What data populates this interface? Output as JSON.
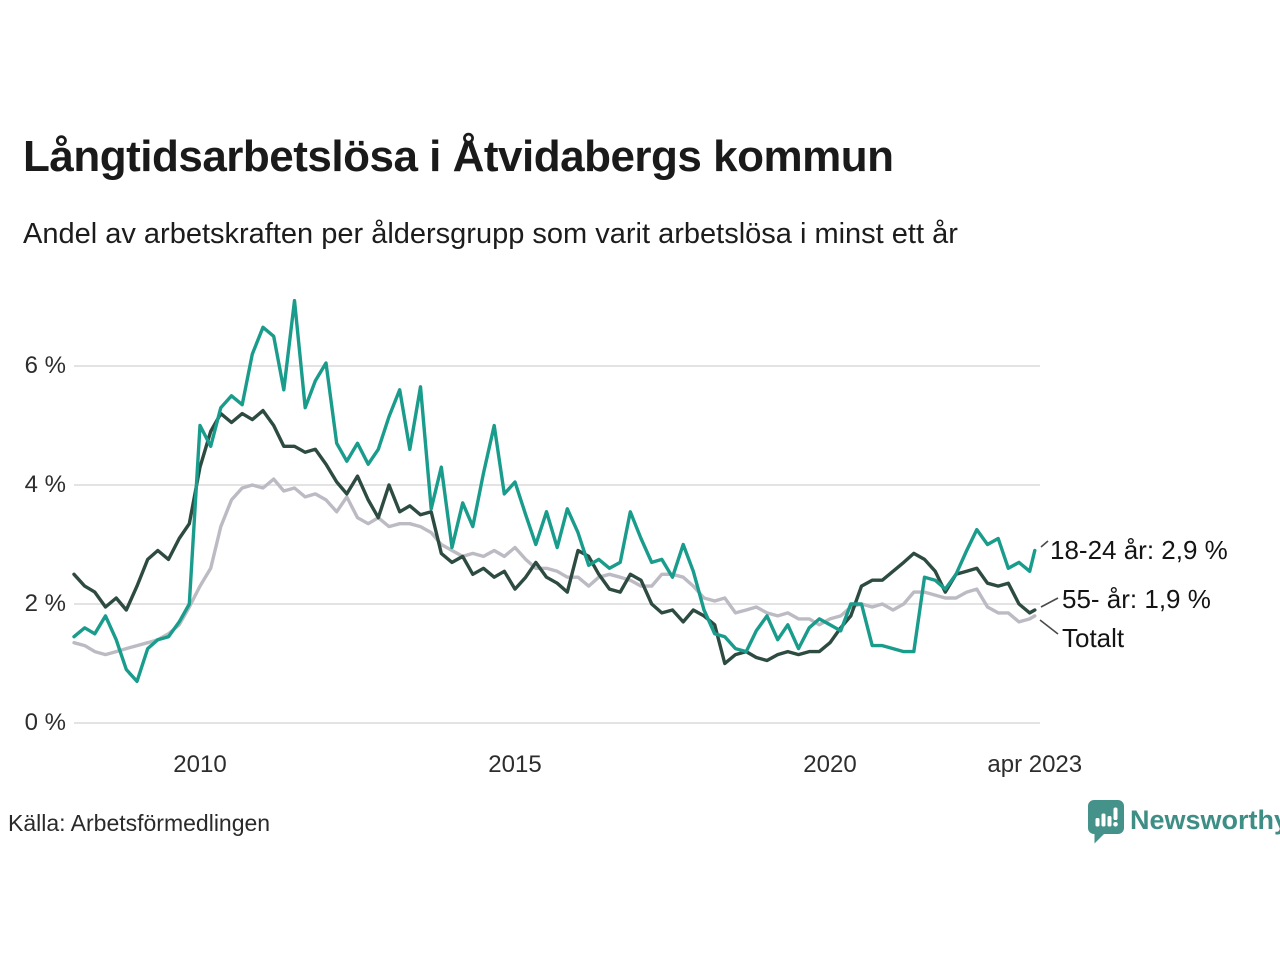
{
  "header": {
    "title": "Långtidsarbetslösa i Åtvidabergs kommun",
    "subtitle": "Andel av arbetskraften per åldersgrupp som varit arbetslösa i minst ett år"
  },
  "footer": {
    "source": "Källa: Arbetsförmedlingen",
    "brand_name": "Newsworthy"
  },
  "colors": {
    "accent_teal": "#1a9c8c",
    "dark_green": "#2d4b41",
    "gray": "#bcbbc4",
    "grid": "#e3e3e3",
    "brand_teal": "#3f8e86",
    "brand_icon": "#45928a",
    "text": "#1a1a1a"
  },
  "chart_data": {
    "type": "line",
    "title": "Långtidsarbetslösa i Åtvidabergs kommun",
    "subtitle": "Andel av arbetskraften per åldersgrupp som varit arbetslösa i minst ett år",
    "grid": "horizontal-only",
    "legend_position": "end-of-line labels at right",
    "x_axis": {
      "tick_labels": [
        "2010",
        "2015",
        "2020",
        "apr 2023"
      ],
      "tick_values": [
        2010,
        2015,
        2020,
        2023.25
      ],
      "range": [
        2008,
        2023.25
      ]
    },
    "y_axis": {
      "unit": "%",
      "tick_labels": [
        "6 %",
        "4 %",
        "2 %",
        "0 %"
      ],
      "tick_values": [
        6,
        4,
        2,
        0
      ],
      "range": [
        0,
        7.3
      ]
    },
    "x": [
      2008,
      2008.17,
      2008.33,
      2008.5,
      2008.67,
      2008.83,
      2009,
      2009.17,
      2009.33,
      2009.5,
      2009.67,
      2009.83,
      2010,
      2010.17,
      2010.33,
      2010.5,
      2010.67,
      2010.83,
      2011,
      2011.17,
      2011.33,
      2011.5,
      2011.67,
      2011.83,
      2012,
      2012.17,
      2012.33,
      2012.5,
      2012.67,
      2012.83,
      2013,
      2013.17,
      2013.33,
      2013.5,
      2013.67,
      2013.83,
      2014,
      2014.17,
      2014.33,
      2014.5,
      2014.67,
      2014.83,
      2015,
      2015.17,
      2015.33,
      2015.5,
      2015.67,
      2015.83,
      2016,
      2016.17,
      2016.33,
      2016.5,
      2016.67,
      2016.83,
      2017,
      2017.17,
      2017.33,
      2017.5,
      2017.67,
      2017.83,
      2018,
      2018.17,
      2018.33,
      2018.5,
      2018.67,
      2018.83,
      2019,
      2019.17,
      2019.33,
      2019.5,
      2019.67,
      2019.83,
      2020,
      2020.17,
      2020.33,
      2020.5,
      2020.67,
      2020.83,
      2021,
      2021.17,
      2021.33,
      2021.5,
      2021.67,
      2021.83,
      2022,
      2022.17,
      2022.33,
      2022.5,
      2022.67,
      2022.83,
      2023,
      2023.17,
      2023.25
    ],
    "series": [
      {
        "name": "18-24 år",
        "end_label": "18-24 år: 2,9 %",
        "latest_value": "2,9 %",
        "color": "#1a9c8c",
        "values": [
          1.45,
          1.6,
          1.5,
          1.8,
          1.4,
          0.9,
          0.7,
          1.25,
          1.4,
          1.45,
          1.7,
          2.0,
          5.0,
          4.65,
          5.3,
          5.5,
          5.35,
          6.2,
          6.65,
          6.5,
          5.6,
          7.1,
          5.3,
          5.75,
          6.05,
          4.7,
          4.4,
          4.7,
          4.35,
          4.6,
          5.15,
          5.6,
          4.6,
          5.65,
          3.6,
          4.3,
          2.95,
          3.7,
          3.3,
          4.2,
          5.0,
          3.85,
          4.05,
          3.5,
          3.0,
          3.55,
          2.95,
          3.6,
          3.2,
          2.65,
          2.75,
          2.6,
          2.7,
          3.55,
          3.1,
          2.7,
          2.75,
          2.45,
          3.0,
          2.55,
          1.9,
          1.5,
          1.45,
          1.25,
          1.2,
          1.55,
          1.8,
          1.4,
          1.65,
          1.25,
          1.6,
          1.75,
          1.65,
          1.55,
          2.0,
          2.0,
          1.3,
          1.3,
          1.25,
          1.2,
          1.2,
          2.45,
          2.4,
          2.25,
          2.5,
          2.9,
          3.25,
          3.0,
          3.1,
          2.6,
          2.7,
          2.55,
          2.9
        ]
      },
      {
        "name": "55- år",
        "end_label": "55- år: 1,9 %",
        "latest_value": "1,9 %",
        "color": "#2d4b41",
        "values": [
          2.5,
          2.3,
          2.2,
          1.95,
          2.1,
          1.9,
          2.3,
          2.75,
          2.9,
          2.75,
          3.1,
          3.35,
          4.3,
          4.9,
          5.2,
          5.05,
          5.2,
          5.1,
          5.25,
          5.0,
          4.65,
          4.65,
          4.55,
          4.6,
          4.35,
          4.05,
          3.85,
          4.15,
          3.75,
          3.45,
          4.0,
          3.55,
          3.65,
          3.5,
          3.55,
          2.85,
          2.7,
          2.8,
          2.5,
          2.6,
          2.45,
          2.55,
          2.25,
          2.45,
          2.7,
          2.45,
          2.35,
          2.2,
          2.9,
          2.8,
          2.5,
          2.25,
          2.2,
          2.5,
          2.4,
          2.0,
          1.85,
          1.9,
          1.7,
          1.9,
          1.8,
          1.65,
          1.0,
          1.15,
          1.2,
          1.1,
          1.05,
          1.15,
          1.2,
          1.15,
          1.2,
          1.2,
          1.35,
          1.6,
          1.8,
          2.3,
          2.4,
          2.4,
          2.55,
          2.7,
          2.85,
          2.75,
          2.55,
          2.2,
          2.5,
          2.55,
          2.6,
          2.35,
          2.3,
          2.35,
          2.0,
          1.85,
          1.9
        ]
      },
      {
        "name": "Totalt",
        "end_label": "Totalt",
        "latest_value": "1,8 %",
        "color": "#bcbbc4",
        "values": [
          1.35,
          1.3,
          1.2,
          1.15,
          1.2,
          1.25,
          1.3,
          1.35,
          1.4,
          1.5,
          1.65,
          1.95,
          2.3,
          2.6,
          3.3,
          3.75,
          3.95,
          4.0,
          3.95,
          4.1,
          3.9,
          3.95,
          3.8,
          3.85,
          3.75,
          3.55,
          3.8,
          3.45,
          3.35,
          3.45,
          3.3,
          3.35,
          3.35,
          3.3,
          3.2,
          3.0,
          2.9,
          2.8,
          2.85,
          2.8,
          2.9,
          2.8,
          2.95,
          2.75,
          2.6,
          2.6,
          2.55,
          2.45,
          2.45,
          2.3,
          2.45,
          2.5,
          2.45,
          2.4,
          2.3,
          2.3,
          2.5,
          2.5,
          2.45,
          2.3,
          2.1,
          2.05,
          2.1,
          1.85,
          1.9,
          1.95,
          1.85,
          1.8,
          1.85,
          1.75,
          1.75,
          1.65,
          1.75,
          1.8,
          1.95,
          2.0,
          1.95,
          2.0,
          1.9,
          2.0,
          2.2,
          2.2,
          2.15,
          2.1,
          2.1,
          2.2,
          2.25,
          1.95,
          1.85,
          1.85,
          1.7,
          1.75,
          1.8
        ]
      }
    ]
  }
}
